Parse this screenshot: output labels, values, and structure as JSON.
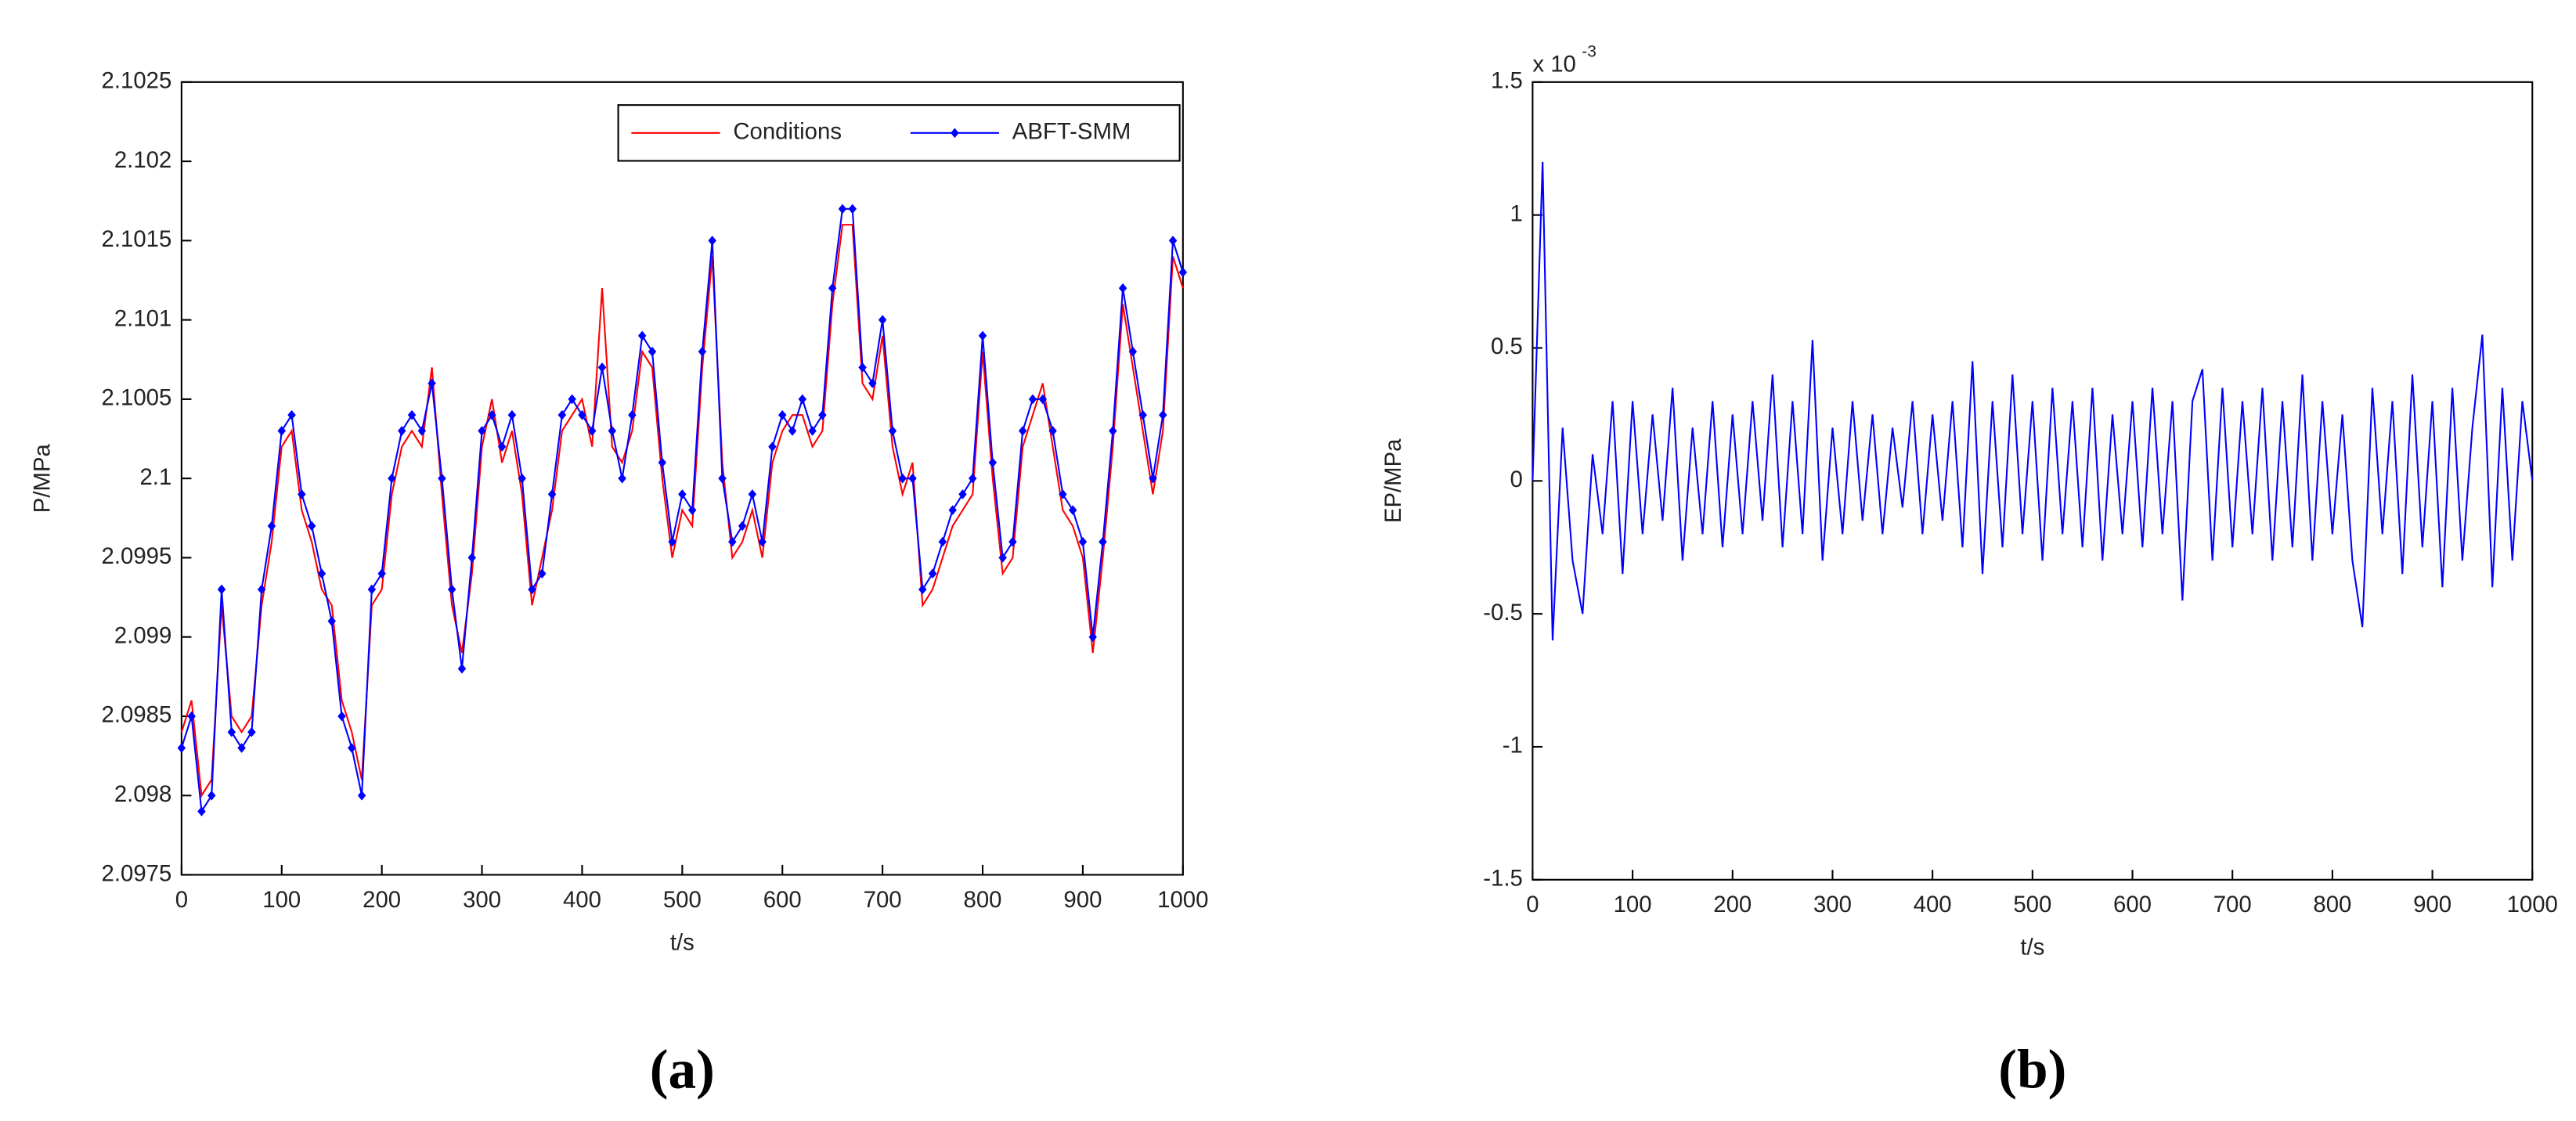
{
  "chart_data": [
    {
      "type": "line",
      "xlabel": "t/s",
      "ylabel": "P/MPa",
      "panel_label": "(a)",
      "xlim": [
        0,
        1000
      ],
      "xticks": [
        0,
        100,
        200,
        300,
        400,
        500,
        600,
        700,
        800,
        900,
        1000
      ],
      "ylim": [
        2.0975,
        2.1025
      ],
      "yticks": [
        2.0975,
        2.098,
        2.0985,
        2.099,
        2.0995,
        2.1,
        2.1005,
        2.101,
        2.1015,
        2.102,
        2.1025
      ],
      "legend": "upper right",
      "x": [
        0,
        10,
        20,
        30,
        40,
        50,
        60,
        70,
        80,
        90,
        100,
        110,
        120,
        130,
        140,
        150,
        160,
        170,
        180,
        190,
        200,
        210,
        220,
        230,
        240,
        250,
        260,
        270,
        280,
        290,
        300,
        310,
        320,
        330,
        340,
        350,
        360,
        370,
        380,
        390,
        400,
        410,
        420,
        430,
        440,
        450,
        460,
        470,
        480,
        490,
        500,
        510,
        520,
        530,
        540,
        550,
        560,
        570,
        580,
        590,
        600,
        610,
        620,
        630,
        640,
        650,
        660,
        670,
        680,
        690,
        700,
        710,
        720,
        730,
        740,
        750,
        760,
        770,
        780,
        790,
        800,
        810,
        820,
        830,
        840,
        850,
        860,
        870,
        880,
        890,
        900,
        910,
        920,
        930,
        940,
        950,
        960,
        970,
        980,
        990,
        1000
      ],
      "series": [
        {
          "name": "Conditions",
          "color": "#ff0000",
          "marker": false,
          "values": [
            2.0984,
            2.0986,
            2.098,
            2.0981,
            2.0992,
            2.0985,
            2.0984,
            2.0985,
            2.0992,
            2.0996,
            2.1002,
            2.1003,
            2.0998,
            2.0996,
            2.0993,
            2.0992,
            2.0986,
            2.0984,
            2.0981,
            2.0992,
            2.0993,
            2.0999,
            2.1002,
            2.1003,
            2.1002,
            2.1007,
            2.0999,
            2.0992,
            2.0989,
            2.0994,
            2.1002,
            2.1005,
            2.1001,
            2.1003,
            2.0999,
            2.0992,
            2.0995,
            2.0998,
            2.1003,
            2.1004,
            2.1005,
            2.1002,
            2.1012,
            2.1002,
            2.1001,
            2.1003,
            2.1008,
            2.1007,
            2.1,
            2.0995,
            2.0998,
            2.0997,
            2.1007,
            2.1014,
            2.1001,
            2.0995,
            2.0996,
            2.0998,
            2.0995,
            2.1001,
            2.1003,
            2.1004,
            2.1004,
            2.1002,
            2.1003,
            2.1011,
            2.1016,
            2.1016,
            2.1006,
            2.1005,
            2.1009,
            2.1002,
            2.0999,
            2.1001,
            2.0992,
            2.0993,
            2.0995,
            2.0997,
            2.0998,
            2.0999,
            2.1008,
            2.1,
            2.0994,
            2.0995,
            2.1002,
            2.1004,
            2.1006,
            2.1002,
            2.0998,
            2.0997,
            2.0995,
            2.0989,
            2.0995,
            2.1002,
            2.1011,
            2.1007,
            2.1003,
            2.0999,
            2.1003,
            2.1014,
            2.1012
          ]
        },
        {
          "name": "ABFT-SMM",
          "color": "#0000ff",
          "marker": true,
          "values": [
            2.0983,
            2.0985,
            2.0979,
            2.098,
            2.0993,
            2.0984,
            2.0983,
            2.0984,
            2.0993,
            2.0997,
            2.1003,
            2.1004,
            2.0999,
            2.0997,
            2.0994,
            2.0991,
            2.0985,
            2.0983,
            2.098,
            2.0993,
            2.0994,
            2.1,
            2.1003,
            2.1004,
            2.1003,
            2.1006,
            2.1,
            2.0993,
            2.0988,
            2.0995,
            2.1003,
            2.1004,
            2.1002,
            2.1004,
            2.1,
            2.0993,
            2.0994,
            2.0999,
            2.1004,
            2.1005,
            2.1004,
            2.1003,
            2.1007,
            2.1003,
            2.1,
            2.1004,
            2.1009,
            2.1008,
            2.1001,
            2.0996,
            2.0999,
            2.0998,
            2.1008,
            2.1015,
            2.1,
            2.0996,
            2.0997,
            2.0999,
            2.0996,
            2.1002,
            2.1004,
            2.1003,
            2.1005,
            2.1003,
            2.1004,
            2.1012,
            2.1017,
            2.1017,
            2.1007,
            2.1006,
            2.101,
            2.1003,
            2.1,
            2.1,
            2.0993,
            2.0994,
            2.0996,
            2.0998,
            2.0999,
            2.1,
            2.1009,
            2.1001,
            2.0995,
            2.0996,
            2.1003,
            2.1005,
            2.1005,
            2.1003,
            2.0999,
            2.0998,
            2.0996,
            2.099,
            2.0996,
            2.1003,
            2.1012,
            2.1008,
            2.1004,
            2.1,
            2.1004,
            2.1015,
            2.1013
          ]
        }
      ]
    },
    {
      "type": "line",
      "xlabel": "t/s",
      "ylabel": "EP/MPa",
      "panel_label": "(b)",
      "y_scale_label": "x 10",
      "y_scale_exponent": "-3",
      "xlim": [
        0,
        1000
      ],
      "xticks": [
        0,
        100,
        200,
        300,
        400,
        500,
        600,
        700,
        800,
        900,
        1000
      ],
      "ylim": [
        -1.5,
        1.5
      ],
      "yticks": [
        -1.5,
        -1,
        -0.5,
        0,
        0.5,
        1,
        1.5
      ],
      "x": [
        0,
        10,
        20,
        30,
        40,
        50,
        60,
        70,
        80,
        90,
        100,
        110,
        120,
        130,
        140,
        150,
        160,
        170,
        180,
        190,
        200,
        210,
        220,
        230,
        240,
        250,
        260,
        270,
        280,
        290,
        300,
        310,
        320,
        330,
        340,
        350,
        360,
        370,
        380,
        390,
        400,
        410,
        420,
        430,
        440,
        450,
        460,
        470,
        480,
        490,
        500,
        510,
        520,
        530,
        540,
        550,
        560,
        570,
        580,
        590,
        600,
        610,
        620,
        630,
        640,
        650,
        660,
        670,
        680,
        690,
        700,
        710,
        720,
        730,
        740,
        750,
        760,
        770,
        780,
        790,
        800,
        810,
        820,
        830,
        840,
        850,
        860,
        870,
        880,
        890,
        900,
        910,
        920,
        930,
        940,
        950,
        960,
        970,
        980,
        990,
        1000
      ],
      "series": [
        {
          "color": "#0000ff",
          "marker": false,
          "values": [
            0,
            1.2,
            -0.6,
            0.2,
            -0.3,
            -0.5,
            0.1,
            -0.2,
            0.3,
            -0.35,
            0.3,
            -0.2,
            0.25,
            -0.15,
            0.35,
            -0.3,
            0.2,
            -0.2,
            0.3,
            -0.25,
            0.25,
            -0.2,
            0.3,
            -0.15,
            0.4,
            -0.25,
            0.3,
            -0.2,
            0.53,
            -0.3,
            0.2,
            -0.2,
            0.3,
            -0.15,
            0.25,
            -0.2,
            0.2,
            -0.1,
            0.3,
            -0.2,
            0.25,
            -0.15,
            0.3,
            -0.25,
            0.45,
            -0.35,
            0.3,
            -0.25,
            0.4,
            -0.2,
            0.3,
            -0.3,
            0.35,
            -0.2,
            0.3,
            -0.25,
            0.35,
            -0.3,
            0.25,
            -0.2,
            0.3,
            -0.25,
            0.35,
            -0.2,
            0.3,
            -0.45,
            0.3,
            0.42,
            -0.3,
            0.35,
            -0.25,
            0.3,
            -0.2,
            0.35,
            -0.3,
            0.3,
            -0.25,
            0.4,
            -0.3,
            0.3,
            -0.2,
            0.25,
            -0.3,
            -0.55,
            0.35,
            -0.2,
            0.3,
            -0.35,
            0.4,
            -0.25,
            0.3,
            -0.4,
            0.35,
            -0.3,
            0.2,
            0.55,
            -0.4,
            0.35,
            -0.3,
            0.3,
            0
          ]
        }
      ]
    }
  ]
}
